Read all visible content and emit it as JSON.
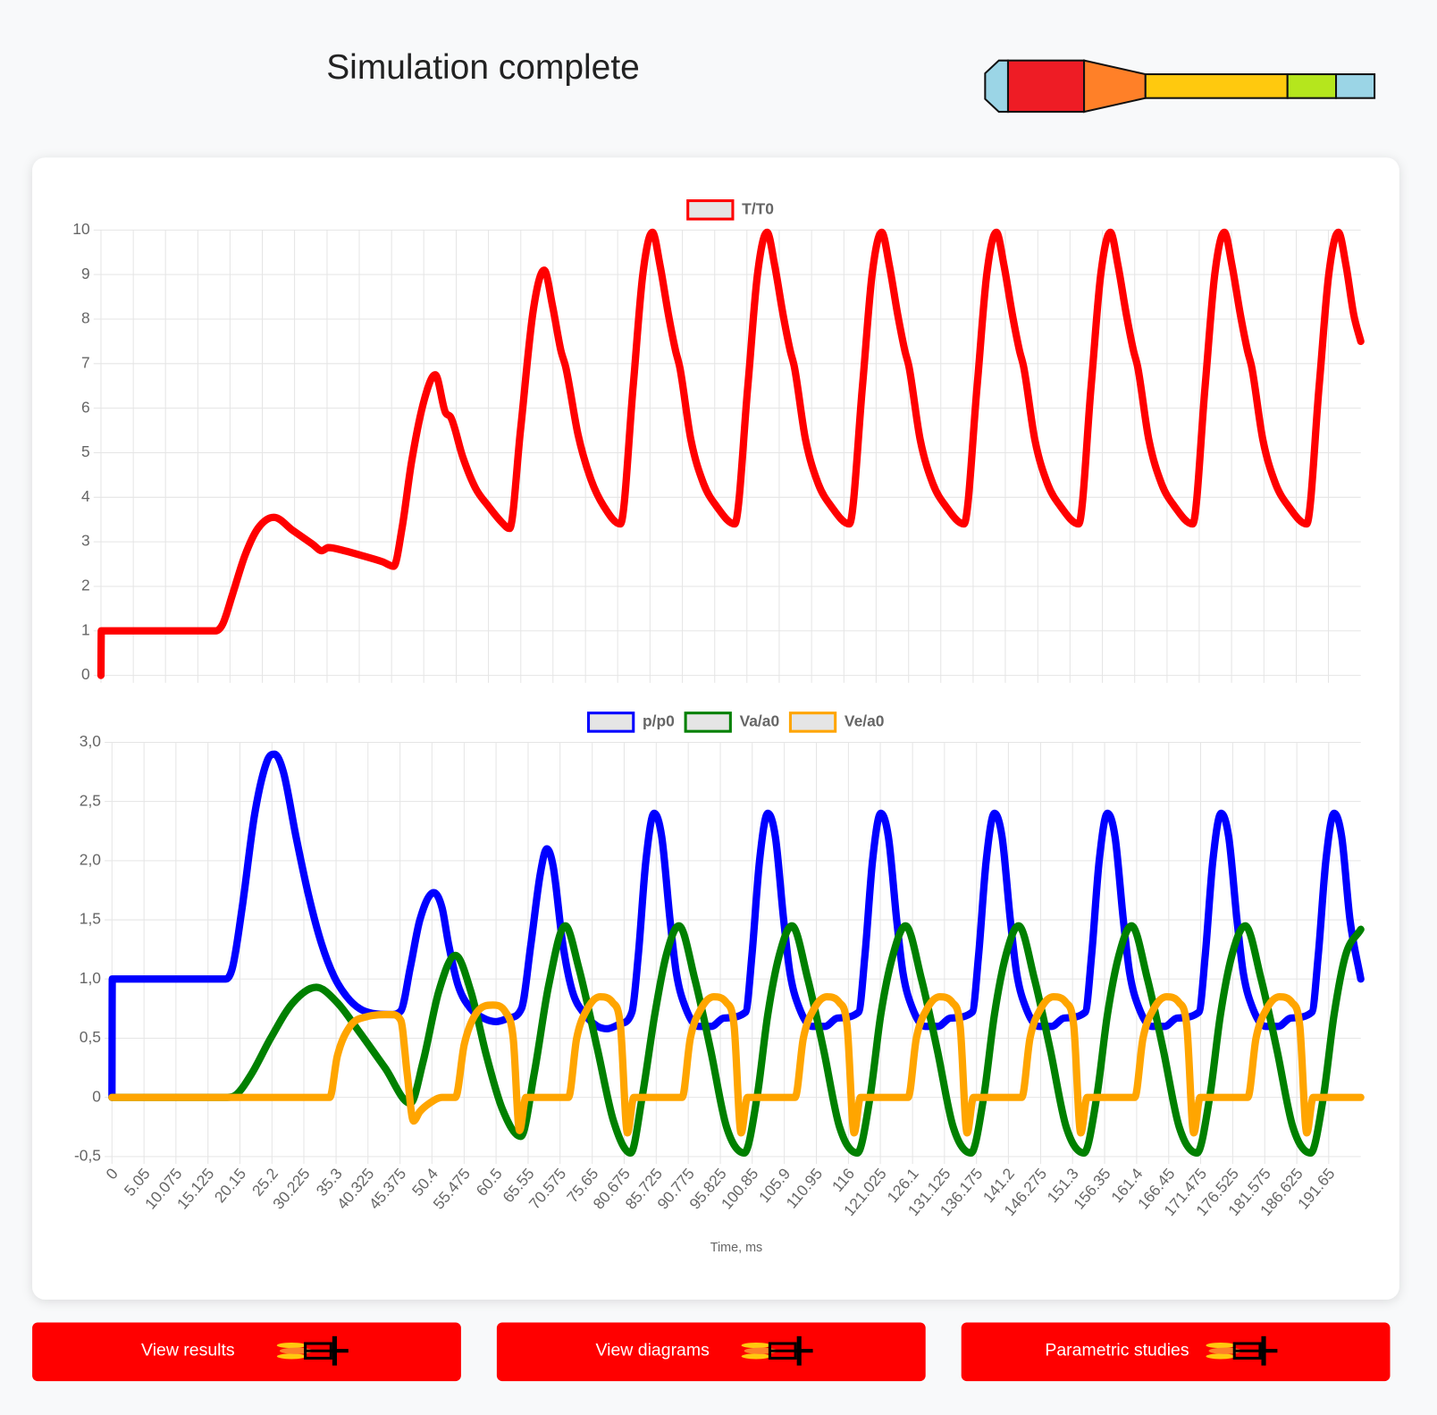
{
  "header": {
    "title": "Simulation complete"
  },
  "chart_data": [
    {
      "type": "line",
      "grid": true,
      "xlim": [
        0,
        196.7
      ],
      "ylim": [
        0,
        10
      ],
      "yticks": [
        0,
        1,
        2,
        3,
        4,
        5,
        6,
        7,
        8,
        9,
        10
      ],
      "series": [
        {
          "name": "T/T0",
          "color": "#ff0000",
          "x": [
            0,
            0.05,
            17.9,
            19,
            20.5,
            22.5,
            24.5,
            27,
            30,
            33,
            34.5,
            35.5,
            38,
            41,
            44,
            45.7,
            47,
            48.5,
            50.5,
            52.2,
            53.8,
            54.6,
            56.5,
            58.5,
            60.5,
            62.5,
            63.8,
            65.5,
            67.5,
            69.2,
            70.5,
            71.8,
            72.6,
            74.5,
            76.5,
            78.5,
            81.1,
            83.1,
            84.6,
            86.1,
            87.3,
            88.6,
            89.7,
            90.4,
            92.1,
            94.1,
            96.1,
            98.95,
            101,
            102.5,
            104,
            105.2,
            106.5,
            107.6,
            108.3,
            110,
            112,
            114,
            116.85,
            118.9,
            120.4,
            121.9,
            123.1,
            124.4,
            125.5,
            126.2,
            127.9,
            129.9,
            131.9,
            134.75,
            136.8,
            138.3,
            139.8,
            141,
            142.3,
            143.4,
            144.1,
            145.8,
            147.8,
            149.8,
            152.65,
            154.6,
            156.1,
            157.6,
            158.8,
            160.1,
            161.2,
            161.9,
            163.6,
            165.6,
            167.6,
            170.45,
            172.4,
            173.9,
            175.4,
            176.6,
            177.9,
            179,
            179.7,
            181.4,
            183.4,
            185.4,
            188.25,
            190.2,
            191.7,
            193.2,
            194.4,
            195.6,
            196.7
          ],
          "values": [
            0,
            1,
            1,
            1.15,
            1.8,
            2.7,
            3.3,
            3.55,
            3.25,
            2.95,
            2.8,
            2.87,
            2.8,
            2.68,
            2.55,
            2.45,
            3.3,
            4.8,
            6.2,
            6.75,
            5.9,
            5.8,
            4.9,
            4.2,
            3.8,
            3.45,
            3.3,
            5.5,
            8.2,
            9.1,
            8.3,
            7.3,
            6.9,
            5.4,
            4.4,
            3.8,
            3.4,
            6.5,
            9,
            9.95,
            9.2,
            8.1,
            7.3,
            6.9,
            5.3,
            4.3,
            3.8,
            3.4,
            6.5,
            9,
            9.95,
            9.2,
            8.1,
            7.3,
            6.9,
            5.3,
            4.3,
            3.8,
            3.4,
            6.5,
            9,
            9.95,
            9.2,
            8.1,
            7.3,
            6.9,
            5.3,
            4.3,
            3.8,
            3.4,
            6.5,
            9,
            9.95,
            9.2,
            8.1,
            7.3,
            6.9,
            5.3,
            4.3,
            3.8,
            3.4,
            6.5,
            9,
            9.95,
            9.2,
            8.1,
            7.3,
            6.9,
            5.3,
            4.3,
            3.8,
            3.4,
            6.5,
            9,
            9.95,
            9.2,
            8.1,
            7.3,
            6.9,
            5.3,
            4.3,
            3.8,
            3.4,
            6.5,
            9,
            9.95,
            9.2,
            8.1,
            7.5
          ]
        }
      ]
    },
    {
      "type": "line",
      "grid": true,
      "xlabel": "Time, ms",
      "xlim": [
        0,
        196.7
      ],
      "xticks": [
        0,
        5.05,
        10.075,
        15.125,
        20.15,
        25.2,
        30.225,
        35.3,
        40.325,
        45.375,
        50.4,
        55.475,
        60.5,
        65.55,
        70.575,
        75.65,
        80.675,
        85.725,
        90.775,
        95.825,
        100.85,
        105.9,
        110.95,
        116,
        121.025,
        126.1,
        131.125,
        136.175,
        141.2,
        146.275,
        151.3,
        156.35,
        161.4,
        166.45,
        171.475,
        176.525,
        181.575,
        186.625,
        191.65
      ],
      "ylim": [
        -0.5,
        3
      ],
      "yticks": [
        {
          "value": -0.5,
          "label": "-0,5"
        },
        0,
        {
          "value": 0.5,
          "label": "0,5"
        },
        {
          "value": 1,
          "label": "1,0"
        },
        {
          "value": 1.5,
          "label": "1,5"
        },
        {
          "value": 2,
          "label": "2,0"
        },
        {
          "value": 2.5,
          "label": "2,5"
        },
        {
          "value": 3,
          "label": "3,0"
        }
      ],
      "series": [
        {
          "name": "p/p0",
          "color": "#0000ff",
          "x": [
            0,
            0.05,
            17.9,
            19,
            20.5,
            22.5,
            24.5,
            25.6,
            27,
            29,
            31,
            33,
            35,
            37,
            39,
            41,
            44,
            45.5,
            47,
            48.5,
            50.7,
            52,
            53,
            54.5,
            56.5,
            58.5,
            60.5,
            62.5,
            64.5,
            66,
            67.5,
            68.5,
            69.5,
            71,
            72.5,
            74.5,
            76.5,
            78,
            80,
            81.9,
            82.9,
            84.1,
            85.4,
            86.6,
            87.9,
            88.9,
            90.4,
            92.4,
            94.4,
            96.4,
            99.8,
            100.8,
            102,
            103.3,
            104.5,
            105.8,
            106.8,
            108.3,
            110.3,
            112.3,
            114.3,
            117.6,
            118.6,
            119.8,
            121.1,
            122.3,
            123.6,
            124.6,
            126.1,
            128.1,
            130.1,
            132.1,
            135.5,
            136.5,
            137.7,
            139,
            140.2,
            141.5,
            142.5,
            144,
            146,
            148,
            150,
            153.3,
            154.3,
            155.5,
            156.8,
            158,
            159.3,
            160.3,
            161.8,
            163.8,
            165.8,
            167.8,
            171.2,
            172.2,
            173.4,
            174.7,
            175.9,
            177.2,
            178.2,
            179.7,
            181.7,
            183.7,
            185.7,
            189,
            190,
            191.2,
            192.5,
            193.7,
            195,
            196.7
          ],
          "values": [
            0,
            1,
            1,
            1.1,
            1.6,
            2.4,
            2.85,
            2.9,
            2.75,
            2.2,
            1.7,
            1.3,
            1.02,
            0.85,
            0.75,
            0.71,
            0.7,
            0.73,
            1.1,
            1.5,
            1.73,
            1.6,
            1.3,
            0.95,
            0.75,
            0.67,
            0.64,
            0.67,
            0.75,
            1.3,
            1.9,
            2.1,
            1.95,
            1.3,
            0.9,
            0.7,
            0.6,
            0.58,
            0.62,
            0.72,
            1.2,
            2,
            2.4,
            2.2,
            1.5,
            1.05,
            0.75,
            0.6,
            0.6,
            0.67,
            0.72,
            1.2,
            2,
            2.4,
            2.2,
            1.5,
            1.05,
            0.75,
            0.6,
            0.6,
            0.67,
            0.72,
            1.2,
            2,
            2.4,
            2.2,
            1.5,
            1.05,
            0.75,
            0.6,
            0.6,
            0.67,
            0.72,
            1.2,
            2,
            2.4,
            2.2,
            1.5,
            1.05,
            0.75,
            0.6,
            0.6,
            0.67,
            0.72,
            1.2,
            2,
            2.4,
            2.2,
            1.5,
            1.05,
            0.75,
            0.6,
            0.6,
            0.67,
            0.72,
            1.2,
            2,
            2.4,
            2.2,
            1.5,
            1.05,
            0.75,
            0.6,
            0.6,
            0.67,
            0.72,
            1.2,
            2,
            2.4,
            2.2,
            1.5,
            1
          ]
        },
        {
          "name": "Va/a0",
          "color": "#008000",
          "x": [
            0,
            18,
            19.5,
            22,
            25,
            28.5,
            32.2,
            35.5,
            39,
            43,
            47,
            49,
            51.5,
            54.1,
            56.5,
            59,
            61.5,
            64.4,
            66.5,
            68.8,
            71.4,
            73.5,
            76.5,
            79,
            81.7,
            83.5,
            85.5,
            87.3,
            89.3,
            91.8,
            94.3,
            96.8,
            99.6,
            101.6,
            103.3,
            105.1,
            107.1,
            109.6,
            112.1,
            114.6,
            117.4,
            119.4,
            121.1,
            123,
            125,
            127.5,
            130,
            132.5,
            135.3,
            137.3,
            139,
            140.8,
            142.8,
            145.3,
            147.8,
            150.3,
            153.1,
            155.1,
            156.8,
            158.6,
            160.6,
            163.1,
            165.6,
            168.1,
            170.9,
            172.9,
            174.6,
            176.4,
            178.5,
            181,
            183.5,
            186,
            188.8,
            190.8,
            192.5,
            194.3,
            196.7
          ],
          "values": [
            0,
            0,
            0.02,
            0.2,
            0.5,
            0.8,
            0.93,
            0.8,
            0.55,
            0.25,
            -0.05,
            0.3,
            0.9,
            1.2,
            0.9,
            0.35,
            -0.1,
            -0.33,
            0.2,
            0.95,
            1.45,
            1.1,
            0.4,
            -0.2,
            -0.47,
            0,
            0.7,
            1.2,
            1.45,
            1,
            0.4,
            -0.25,
            -0.47,
            0,
            0.7,
            1.2,
            1.45,
            1,
            0.4,
            -0.25,
            -0.47,
            0,
            0.7,
            1.2,
            1.45,
            1,
            0.4,
            -0.25,
            -0.47,
            0,
            0.7,
            1.2,
            1.45,
            1,
            0.4,
            -0.25,
            -0.47,
            0,
            0.7,
            1.2,
            1.45,
            1,
            0.4,
            -0.25,
            -0.47,
            0,
            0.7,
            1.2,
            1.45,
            1,
            0.4,
            -0.25,
            -0.47,
            0,
            0.7,
            1.2,
            1.42
          ]
        },
        {
          "name": "Ve/a0",
          "color": "#ffa500",
          "x": [
            0,
            34.3,
            35.5,
            37.5,
            40,
            44,
            45.5,
            46.5,
            47.5,
            48.5,
            50,
            52,
            54.1,
            55.5,
            57.5,
            60,
            62,
            63.2,
            64.2,
            65.2,
            71.9,
            73.2,
            74.9,
            76.9,
            78.9,
            80.1,
            81.2,
            82.2,
            89.8,
            91.1,
            92.8,
            94.8,
            96.8,
            98,
            99.1,
            100.1,
            107.6,
            108.9,
            110.6,
            112.6,
            114.6,
            115.8,
            116.9,
            117.9,
            125.4,
            126.7,
            128.4,
            130.4,
            132.4,
            133.6,
            134.7,
            135.7,
            143.3,
            144.6,
            146.3,
            148.3,
            150.3,
            151.5,
            152.6,
            153.6,
            161.1,
            162.4,
            164.1,
            166.1,
            168.1,
            169.3,
            170.4,
            171.4,
            178.9,
            180.2,
            181.9,
            183.9,
            185.9,
            187.1,
            188.2,
            189.2,
            196.7
          ],
          "values": [
            0,
            0,
            0.35,
            0.6,
            0.68,
            0.7,
            0.65,
            0.2,
            -0.2,
            -0.12,
            -0.05,
            0,
            0,
            0.45,
            0.72,
            0.78,
            0.72,
            0.5,
            -0.28,
            0,
            0,
            0.5,
            0.75,
            0.85,
            0.8,
            0.6,
            -0.3,
            0,
            0,
            0.5,
            0.75,
            0.85,
            0.8,
            0.6,
            -0.3,
            0,
            0,
            0.5,
            0.75,
            0.85,
            0.8,
            0.6,
            -0.3,
            0,
            0,
            0.5,
            0.75,
            0.85,
            0.8,
            0.6,
            -0.3,
            0,
            0,
            0.5,
            0.75,
            0.85,
            0.8,
            0.6,
            -0.3,
            0,
            0,
            0.5,
            0.75,
            0.85,
            0.8,
            0.6,
            -0.3,
            0,
            0,
            0.5,
            0.75,
            0.85,
            0.8,
            0.6,
            -0.3,
            0,
            0
          ]
        }
      ]
    }
  ],
  "buttons": [
    "View results",
    "View diagrams",
    "Parametric studies"
  ]
}
